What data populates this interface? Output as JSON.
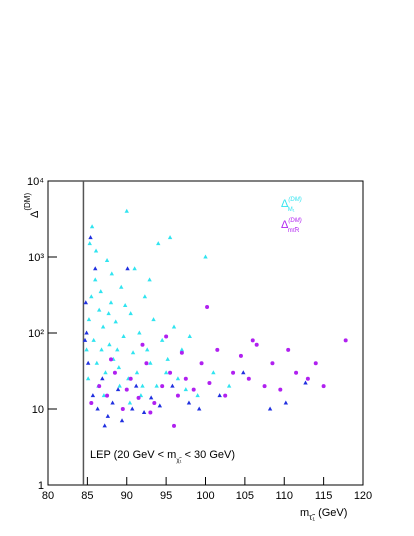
{
  "chart_data": {
    "type": "scatter",
    "x_label": {
      "main": "m",
      "sub": "τ̃₁",
      "unit": " (GeV)"
    },
    "y_label": {
      "main": "Δ",
      "sup": "(DM)"
    },
    "xlim": [
      80,
      120
    ],
    "xticks": [
      80,
      85,
      90,
      95,
      100,
      105,
      110,
      115,
      120
    ],
    "ylim": [
      1,
      10000
    ],
    "yticks": [
      1,
      10,
      {
        "value": 100,
        "label": "10²"
      },
      {
        "value": 1000,
        "label": "10³"
      },
      {
        "value": 10000,
        "label": "10⁴"
      }
    ],
    "log_y": true,
    "lep_limit": 84.5,
    "annotation": {
      "before": "LEP (20 GeV < m",
      "sub": "χ̃₁",
      "after": " < 30 GeV)"
    },
    "legend": "upper right",
    "series": [
      {
        "name": "Δ",
        "name_sup": "(DM)",
        "name_sub": "M₁",
        "color": "#30e4f0",
        "marker": "triangle",
        "x": [
          85.2,
          85.5,
          85.8,
          86,
          86.2,
          86.5,
          86.8,
          87,
          87.3,
          87.5,
          87.8,
          88,
          88.3,
          88.6,
          89,
          89.3,
          89.6,
          90,
          90.2,
          90.5,
          90.8,
          91,
          91.3,
          91.6,
          92,
          92.3,
          92.6,
          93,
          93.4,
          93.8,
          94,
          94.5,
          95,
          95.5,
          96,
          96.5,
          97,
          97.5,
          98,
          99,
          100,
          101,
          103,
          85.3,
          85.6,
          86.1,
          86.4,
          87.1,
          88.1,
          89.1,
          90.4,
          91.8,
          86.7,
          88.8,
          92.9,
          95.2,
          84.9,
          85.1,
          87.7,
          89.8
        ],
        "values": [
          150,
          300,
          80,
          500,
          40,
          200,
          60,
          120,
          30,
          900,
          70,
          250,
          45,
          140,
          35,
          400,
          90,
          4000,
          25,
          180,
          55,
          700,
          30,
          100,
          20,
          300,
          60,
          40,
          150,
          20,
          1500,
          80,
          30,
          1800,
          120,
          25,
          60,
          18,
          90,
          15,
          1000,
          30,
          20,
          1500,
          2500,
          1200,
          20,
          15,
          600,
          20,
          12,
          15,
          350,
          60,
          500,
          45,
          60,
          25,
          180,
          230
        ]
      },
      {
        "name": "Δ",
        "name_sup": "(DM)",
        "name_sub": "mτ̃R",
        "color": "#b020f0",
        "marker": "circle",
        "x": [
          85.5,
          86.5,
          87.5,
          88.5,
          89.5,
          90.5,
          91.5,
          92.5,
          93.5,
          94.5,
          95.5,
          96.5,
          97.5,
          98.5,
          99.5,
          100.5,
          101.5,
          102.5,
          103.5,
          104.5,
          105.5,
          106.5,
          107.5,
          108.5,
          109.5,
          110.5,
          111.5,
          113,
          114,
          115,
          117.8,
          100.2,
          92,
          95,
          97,
          88,
          90,
          93,
          96,
          106
        ],
        "values": [
          12,
          20,
          15,
          30,
          10,
          25,
          14,
          40,
          12,
          20,
          30,
          15,
          25,
          18,
          40,
          22,
          60,
          15,
          30,
          50,
          25,
          70,
          20,
          40,
          18,
          60,
          30,
          25,
          40,
          20,
          80,
          220,
          70,
          90,
          55,
          45,
          18,
          9,
          6,
          80
        ]
      },
      {
        "color": "#2030e0",
        "marker": "triangle",
        "x": [
          84.8,
          84.9,
          85.1,
          85.4,
          85.7,
          86,
          86.3,
          86.9,
          87.6,
          88.2,
          88.9,
          89.4,
          90.1,
          90.7,
          91.2,
          92.2,
          93.1,
          94.2,
          95.8,
          97.9,
          99.2,
          101.8,
          104.8,
          108.2,
          110.2,
          112.7,
          87.2,
          84.7
        ],
        "values": [
          250,
          100,
          40,
          1800,
          15,
          700,
          10,
          25,
          8,
          12,
          18,
          7,
          700,
          10,
          20,
          9,
          14,
          11,
          20,
          12,
          10,
          15,
          30,
          10,
          12,
          22,
          6,
          80
        ]
      }
    ]
  }
}
